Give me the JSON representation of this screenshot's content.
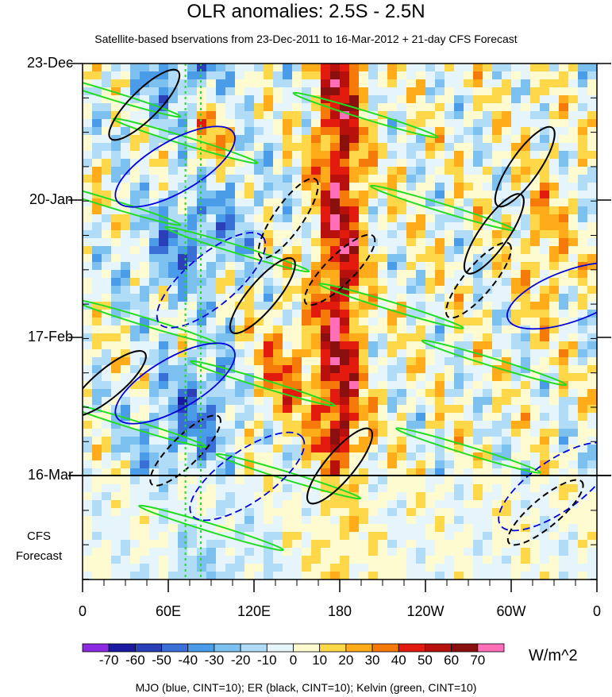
{
  "chart_data": {
    "type": "heatmap",
    "title": "OLR anomalies: 2.5S - 2.5N",
    "subtitle": "Satellite-based bservations from 23-Dec-2011 to 16-Mar-2012 + 21-day CFS Forecast",
    "x_tick_labels": [
      "0",
      "60E",
      "120E",
      "180",
      "120W",
      "60W",
      "0"
    ],
    "x_range": [
      0,
      360
    ],
    "y_tick_labels": [
      "23-Dec",
      "20-Jan",
      "17-Feb",
      "16-Mar"
    ],
    "forecast_label": [
      "CFS",
      "Forecast"
    ],
    "colorbar": {
      "unit": "W/m^2",
      "levels": [
        "-70",
        "-60",
        "-50",
        "-40",
        "-30",
        "-20",
        "-10",
        "0",
        "10",
        "20",
        "30",
        "40",
        "50",
        "60",
        "70"
      ],
      "colors": [
        "#8a2be2",
        "#1a1aa0",
        "#2a3fb8",
        "#3a6fd8",
        "#4a9be8",
        "#7cc0f0",
        "#b0dcf8",
        "#e6f4fb",
        "#fffbd0",
        "#ffd84a",
        "#ffab1a",
        "#f57a0a",
        "#e31a0e",
        "#b8100c",
        "#8a1010",
        "#ff6fb8"
      ]
    },
    "contours": {
      "MJO": "#0000dd",
      "ER": "#000000",
      "Kelvin": "#22dd22"
    },
    "footer": "MJO (blue, CINT=10); ER (black, CINT=10); Kelvin (green, CINT=10)"
  }
}
